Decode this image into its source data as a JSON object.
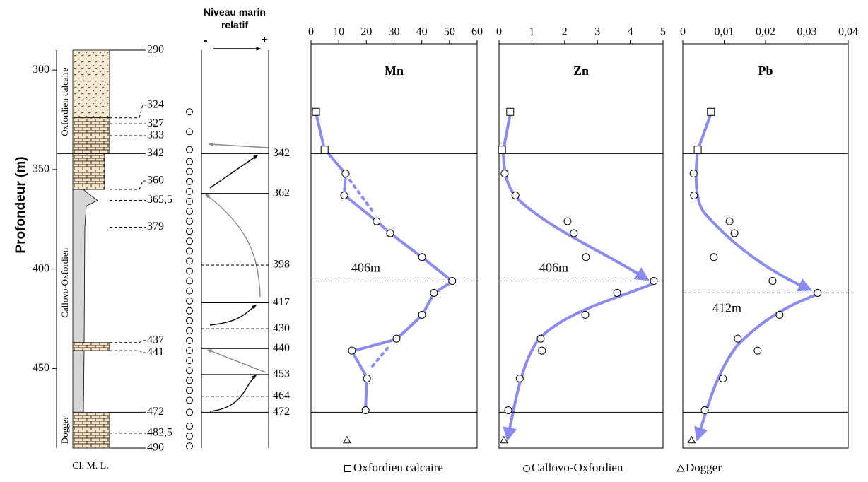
{
  "depth_axis": {
    "label": "Profondeur (m)",
    "ylim": [
      290,
      490
    ],
    "yticks": [
      300,
      350,
      400,
      450
    ]
  },
  "lithology": {
    "units": [
      "Oxfordien calcaire",
      "Callovo-Oxfordien",
      "Dogger"
    ],
    "boundaries": [
      290,
      324,
      327,
      333,
      342,
      360,
      {
        "value": 365.5,
        "label": "365,5"
      },
      379,
      437,
      441,
      472,
      {
        "value": 482.5,
        "label": "482,5"
      },
      490
    ],
    "boundary_styles": [
      "solid",
      "dashed",
      "dashed",
      "dashed",
      "solid",
      "dashed",
      "dashed",
      "dashed",
      "dashed",
      "dashed",
      "solid",
      "dashed",
      "solid"
    ],
    "column_label": "Cl. M. L."
  },
  "sea_level": {
    "title": "Niveau marin relatif",
    "minus": "-",
    "plus": "+",
    "levels": [
      342,
      362,
      398,
      417,
      430,
      440,
      453,
      464,
      472
    ],
    "level_styles": [
      "solid",
      "solid",
      "dashed",
      "solid",
      "dashed",
      "solid",
      "solid",
      "dashed",
      "solid"
    ],
    "samples": [
      321,
      331,
      340,
      346,
      351,
      356,
      361,
      366,
      371,
      376,
      381,
      386,
      391,
      396,
      401,
      406,
      411,
      416,
      421,
      426,
      431,
      436,
      441,
      446,
      451,
      456,
      461,
      466,
      472,
      479,
      484,
      489
    ]
  },
  "chart_data": [
    {
      "type": "scatter",
      "title": "Mn",
      "xlim": [
        0,
        60
      ],
      "xticks": [
        0,
        10,
        20,
        30,
        40,
        50,
        60
      ],
      "boundaries": [
        342,
        472
      ],
      "peak": {
        "value": 406,
        "label": "406m"
      },
      "trend_color": "#8b8bef",
      "series": [
        {
          "name": "Oxfordien calcaire",
          "marker": "square",
          "x": [
            1.8,
            4.9
          ],
          "y": [
            321,
            340
          ]
        },
        {
          "name": "Callovo-Oxfordien",
          "marker": "circle",
          "x": [
            12.5,
            12,
            23.7,
            28.6,
            40.1,
            51,
            44.4,
            40.1,
            30.9,
            14.8,
            20.2,
            19.7
          ],
          "y": [
            352,
            363,
            376,
            382,
            394,
            406,
            412,
            423,
            435,
            441,
            455,
            471
          ]
        },
        {
          "name": "Dogger",
          "marker": "triangle",
          "x": [
            13
          ],
          "y": [
            486
          ]
        }
      ]
    },
    {
      "type": "scatter",
      "title": "Zn",
      "xlim": [
        0,
        5
      ],
      "xticks": [
        0,
        1,
        2,
        3,
        4,
        5
      ],
      "boundaries": [
        342,
        472
      ],
      "peak": {
        "value": 406,
        "label": "406m"
      },
      "trend_color": "#8b8bef",
      "series": [
        {
          "name": "Oxfordien calcaire",
          "marker": "square",
          "x": [
            0.34,
            0.09
          ],
          "y": [
            321,
            340
          ]
        },
        {
          "name": "Callovo-Oxfordien",
          "marker": "circle",
          "x": [
            0.17,
            0.5,
            2.09,
            2.28,
            2.65,
            4.72,
            3.6,
            2.63,
            1.27,
            1.31,
            0.63,
            0.28
          ],
          "y": [
            352,
            363,
            376,
            382,
            394,
            406,
            412,
            423,
            435,
            441,
            455,
            471
          ]
        },
        {
          "name": "Dogger",
          "marker": "triangle",
          "x": [
            0.15
          ],
          "y": [
            486
          ]
        }
      ]
    },
    {
      "type": "scatter",
      "title": "Pb",
      "xlim": [
        0,
        0.04
      ],
      "xticks": [
        0,
        {
          "value": 0.01,
          "label": "0,01"
        },
        {
          "value": 0.02,
          "label": "0,02"
        },
        {
          "value": 0.03,
          "label": "0,03"
        },
        {
          "value": 0.04,
          "label": "0,04"
        }
      ],
      "boundaries": [
        342,
        472
      ],
      "peak": {
        "value": 412,
        "label": "412m"
      },
      "trend_color": "#8b8bef",
      "series": [
        {
          "name": "Oxfordien calcaire",
          "marker": "square",
          "x": [
            0.0068,
            0.0036
          ],
          "y": [
            321,
            340
          ]
        },
        {
          "name": "Callovo-Oxfordien",
          "marker": "circle",
          "x": [
            0.0026,
            0.0027,
            0.0113,
            0.0125,
            0.0075,
            0.0217,
            0.0326,
            0.0234,
            0.0133,
            0.0181,
            0.0097,
            0.0053
          ],
          "y": [
            352,
            363,
            376,
            382,
            394,
            406,
            412,
            423,
            435,
            441,
            455,
            471
          ]
        },
        {
          "name": "Dogger",
          "marker": "triangle",
          "x": [
            0.0021
          ],
          "y": [
            486
          ]
        }
      ]
    }
  ]
}
